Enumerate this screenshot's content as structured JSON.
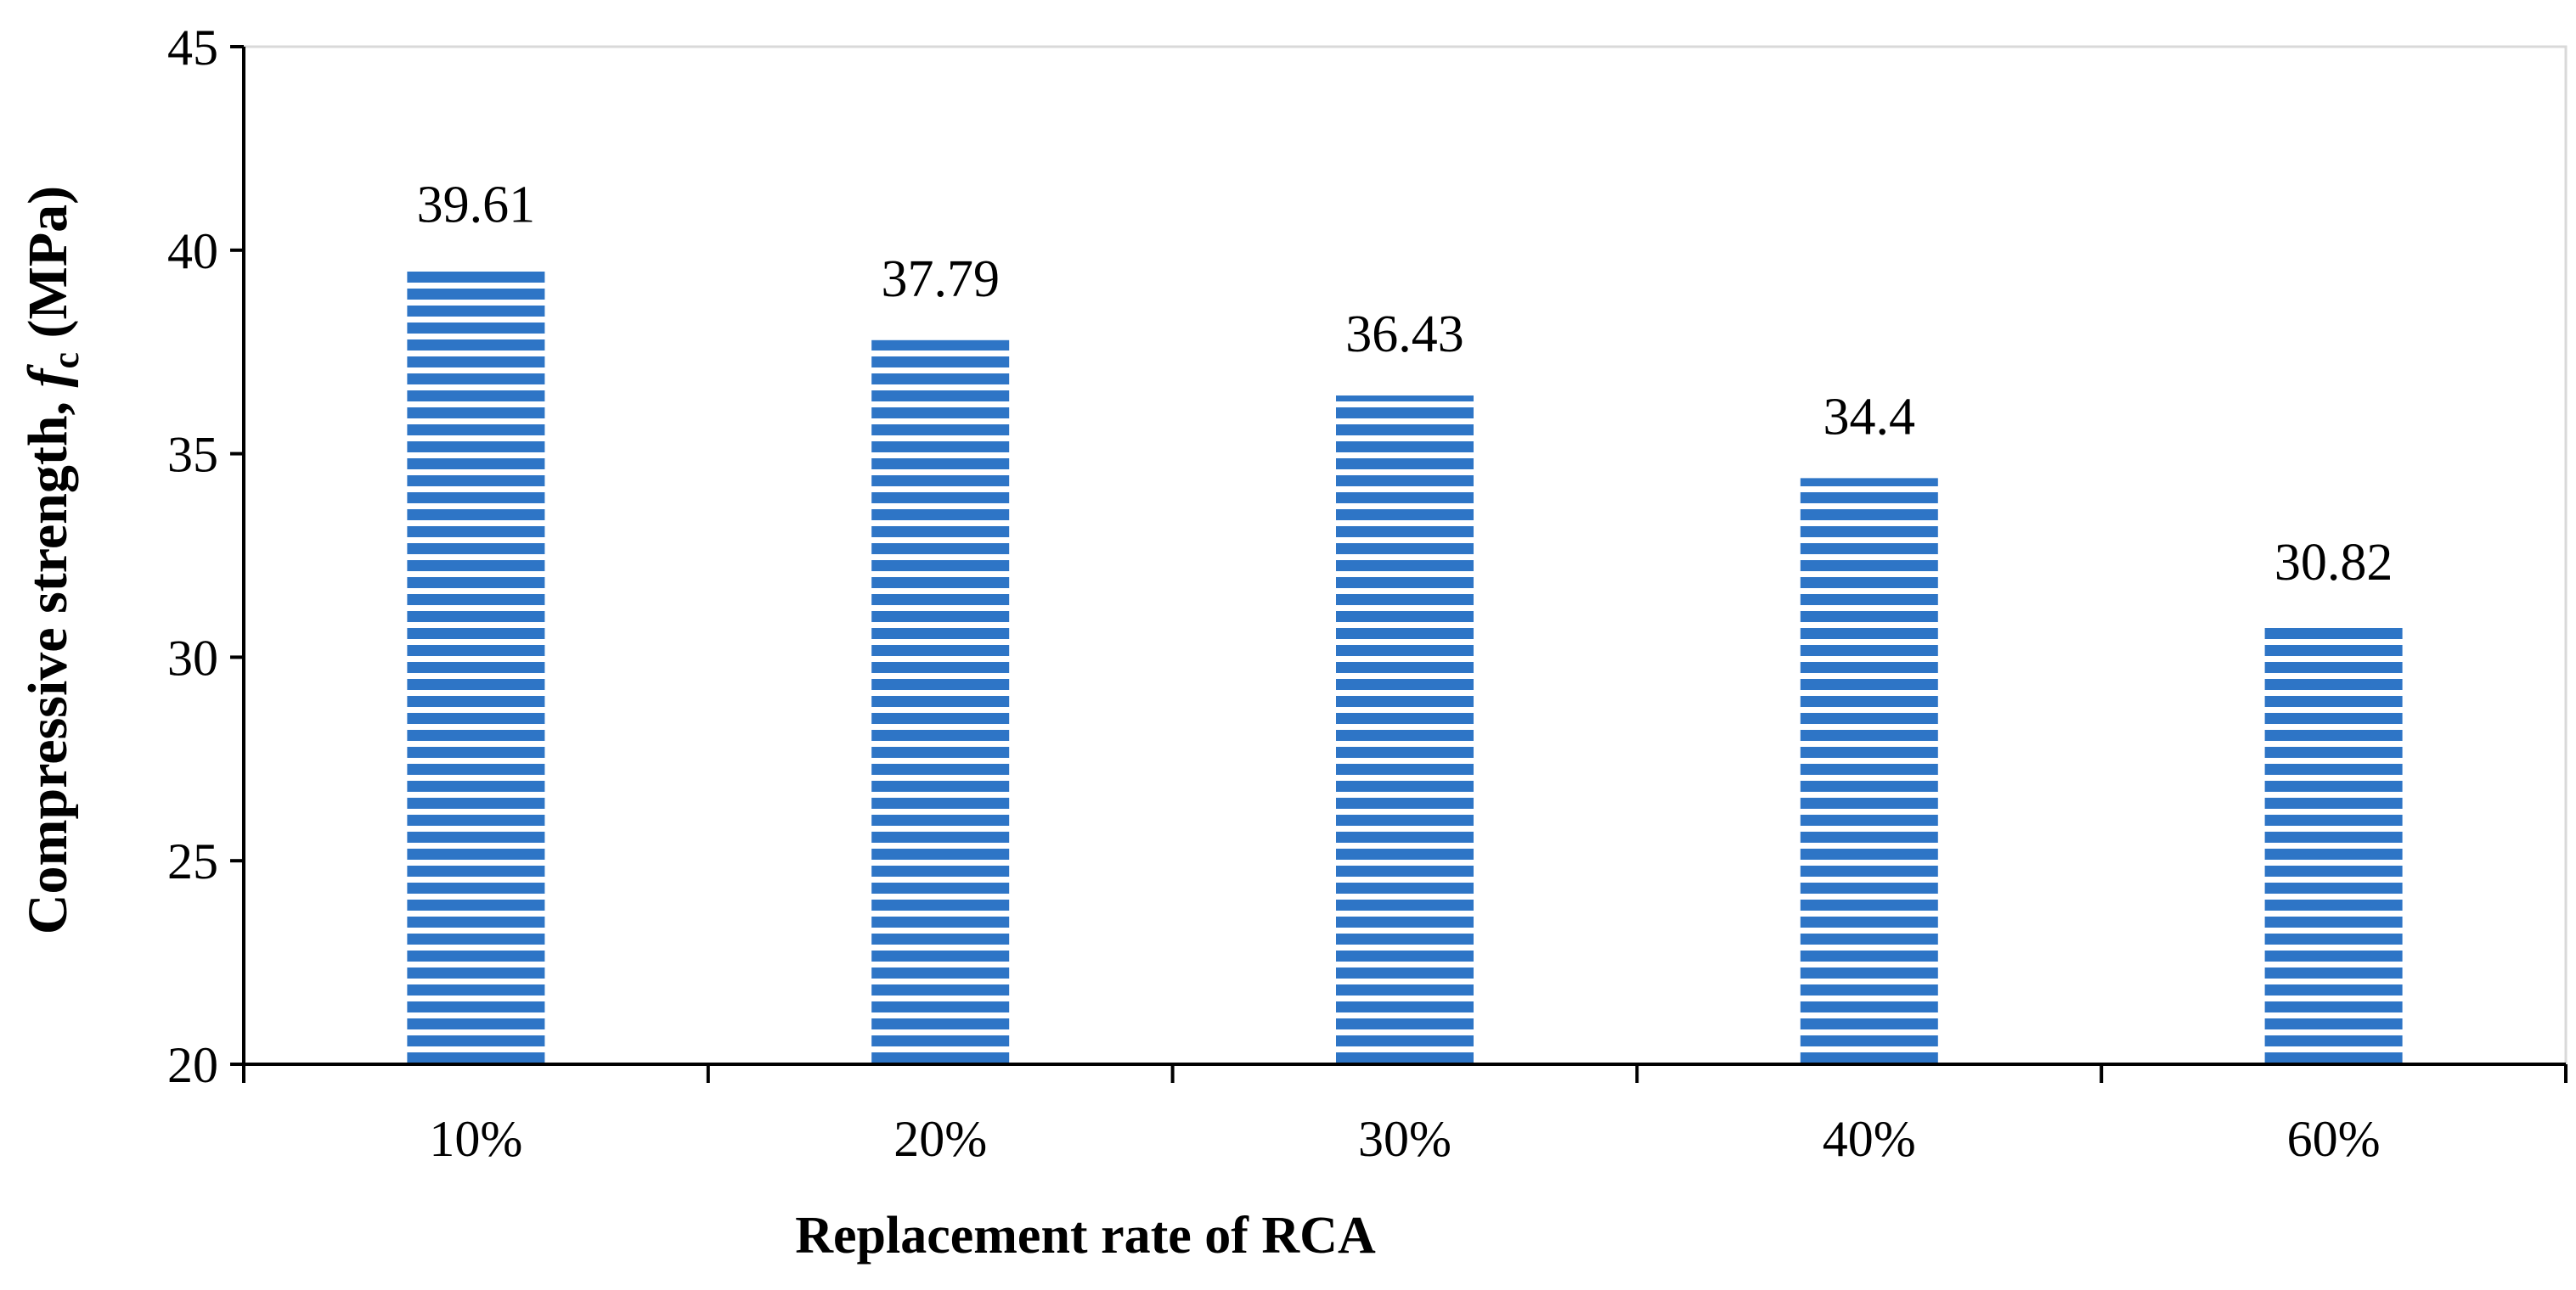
{
  "chart_data": {
    "type": "bar",
    "title": "",
    "categories": [
      "10%",
      "20%",
      "30%",
      "40%",
      "60%"
    ],
    "values": [
      39.61,
      37.79,
      36.43,
      34.4,
      30.82
    ],
    "data_labels": [
      "39.61",
      "37.79",
      "36.43",
      "34.4",
      "30.82"
    ],
    "xlabel": "Replacement rate of RCA",
    "ylabel": {
      "prefix": "Compressive strength, ",
      "symbol": "f",
      "subscript": "c",
      "suffix": " (MPa)"
    },
    "ylim": [
      20,
      45
    ],
    "yticks": [
      20,
      25,
      30,
      35,
      40,
      45
    ],
    "ytick_labels": [
      "20",
      "25",
      "30",
      "35",
      "40",
      "45"
    ],
    "grid": false,
    "legend": "none",
    "bar_color": "#2e75c6",
    "bar_pattern": "horizontal-stripes"
  }
}
